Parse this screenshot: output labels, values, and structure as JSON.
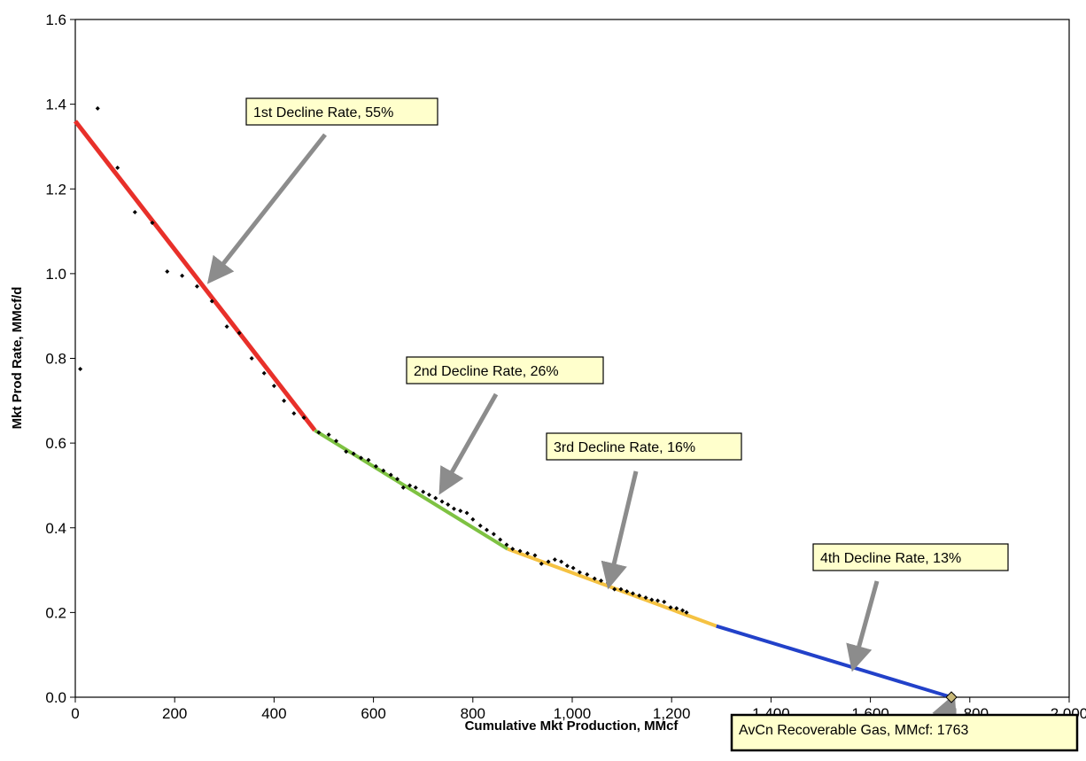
{
  "chart_data": {
    "type": "scatter",
    "title": "",
    "xlabel": "Cumulative Mkt Production, MMcf",
    "ylabel": "Mkt Prod Rate, MMcf/d",
    "xlim": [
      0,
      2000
    ],
    "ylim": [
      0,
      1.6
    ],
    "x_ticks": [
      0,
      200,
      400,
      600,
      800,
      1000,
      1200,
      1400,
      1600,
      1800,
      2000
    ],
    "x_tick_labels": [
      "0",
      "200",
      "400",
      "600",
      "800",
      "1,000",
      "1,200",
      "1,400",
      "1,600",
      "1,800",
      "2,000"
    ],
    "y_ticks": [
      0,
      0.2,
      0.4,
      0.6,
      0.8,
      1.0,
      1.2,
      1.4,
      1.6
    ],
    "y_tick_labels": [
      "0.0",
      "0.2",
      "0.4",
      "0.6",
      "0.8",
      "1.0",
      "1.2",
      "1.4",
      "1.6"
    ],
    "grid": false,
    "legend": "none",
    "colors": {
      "segment_1": "#e8302a",
      "segment_2": "#7ec242",
      "segment_3": "#f5c242",
      "segment_4": "#2241c9",
      "points": "#000000",
      "arrow": "#8c8c8c",
      "callout_fill": "#ffffcc",
      "end_marker": "#c8b878"
    },
    "points": [
      [
        10,
        0.775
      ],
      [
        45,
        1.39
      ],
      [
        85,
        1.25
      ],
      [
        120,
        1.145
      ],
      [
        155,
        1.12
      ],
      [
        185,
        1.005
      ],
      [
        215,
        0.995
      ],
      [
        245,
        0.97
      ],
      [
        275,
        0.935
      ],
      [
        305,
        0.875
      ],
      [
        330,
        0.86
      ],
      [
        355,
        0.8
      ],
      [
        380,
        0.765
      ],
      [
        400,
        0.735
      ],
      [
        420,
        0.7
      ],
      [
        440,
        0.67
      ],
      [
        460,
        0.66
      ],
      [
        490,
        0.625
      ],
      [
        510,
        0.62
      ],
      [
        525,
        0.605
      ],
      [
        545,
        0.58
      ],
      [
        560,
        0.575
      ],
      [
        575,
        0.565
      ],
      [
        590,
        0.56
      ],
      [
        605,
        0.545
      ],
      [
        620,
        0.535
      ],
      [
        635,
        0.525
      ],
      [
        648,
        0.515
      ],
      [
        660,
        0.495
      ],
      [
        673,
        0.5
      ],
      [
        685,
        0.495
      ],
      [
        700,
        0.485
      ],
      [
        712,
        0.478
      ],
      [
        725,
        0.47
      ],
      [
        738,
        0.462
      ],
      [
        750,
        0.455
      ],
      [
        762,
        0.445
      ],
      [
        775,
        0.44
      ],
      [
        788,
        0.435
      ],
      [
        800,
        0.42
      ],
      [
        815,
        0.405
      ],
      [
        828,
        0.395
      ],
      [
        842,
        0.385
      ],
      [
        855,
        0.372
      ],
      [
        868,
        0.36
      ],
      [
        880,
        0.35
      ],
      [
        895,
        0.345
      ],
      [
        910,
        0.34
      ],
      [
        925,
        0.335
      ],
      [
        938,
        0.315
      ],
      [
        952,
        0.32
      ],
      [
        965,
        0.325
      ],
      [
        978,
        0.32
      ],
      [
        990,
        0.31
      ],
      [
        1002,
        0.305
      ],
      [
        1015,
        0.295
      ],
      [
        1030,
        0.29
      ],
      [
        1045,
        0.28
      ],
      [
        1058,
        0.275
      ],
      [
        1072,
        0.27
      ],
      [
        1085,
        0.255
      ],
      [
        1098,
        0.255
      ],
      [
        1110,
        0.25
      ],
      [
        1122,
        0.245
      ],
      [
        1135,
        0.24
      ],
      [
        1148,
        0.235
      ],
      [
        1160,
        0.23
      ],
      [
        1172,
        0.228
      ],
      [
        1185,
        0.225
      ],
      [
        1198,
        0.212
      ],
      [
        1210,
        0.21
      ],
      [
        1222,
        0.205
      ],
      [
        1230,
        0.2
      ]
    ],
    "segments": [
      {
        "rate_label": "1st Decline Rate, 55%",
        "x_start": 0,
        "y_start": 1.36,
        "x_end": 482,
        "y_end": 0.63,
        "color_key": "segment_1"
      },
      {
        "rate_label": "2nd Decline Rate, 26%",
        "x_start": 482,
        "y_start": 0.63,
        "x_end": 870,
        "y_end": 0.35,
        "color_key": "segment_2"
      },
      {
        "rate_label": "3rd Decline Rate, 16%",
        "x_start": 870,
        "y_start": 0.35,
        "x_end": 1290,
        "y_end": 0.168,
        "color_key": "segment_3"
      },
      {
        "rate_label": "4th Decline Rate, 13%",
        "x_start": 1290,
        "y_start": 0.168,
        "x_end": 1763,
        "y_end": 0.0,
        "color_key": "segment_4"
      }
    ],
    "annotations": [
      {
        "text": "1st Decline Rate, 55%",
        "arrow_tip": [
          282,
          1.0
        ]
      },
      {
        "text": "2nd Decline Rate, 26%",
        "arrow_tip": [
          745,
          0.505
        ]
      },
      {
        "text": "3rd Decline Rate, 16%",
        "arrow_tip": [
          1078,
          0.285
        ]
      },
      {
        "text": "4th Decline Rate, 13%",
        "arrow_tip": [
          1570,
          0.09
        ]
      }
    ],
    "end_point": {
      "x": 1763,
      "y": 0.0
    },
    "result_label": "AvCn Recoverable Gas, MMcf: 1763"
  }
}
